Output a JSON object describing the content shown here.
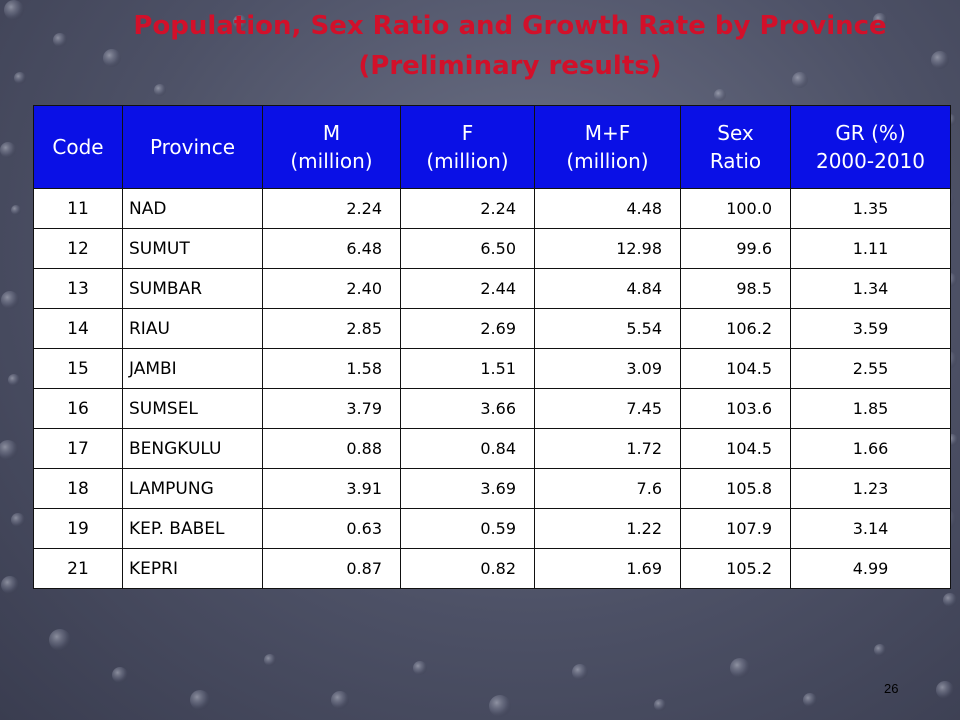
{
  "title": {
    "line1": "Population, Sex Ratio and Growth Rate by Province",
    "line2": "(Preliminary results)"
  },
  "table": {
    "headers": [
      [
        "Code"
      ],
      [
        "Province"
      ],
      [
        "M",
        "(million)"
      ],
      [
        "F",
        "(million)"
      ],
      [
        "M+F",
        "(million)"
      ],
      [
        "Sex",
        "Ratio"
      ],
      [
        "GR (%)",
        "2000-2010"
      ]
    ],
    "rows": [
      [
        "11",
        "NAD",
        "2.24",
        "2.24",
        "4.48",
        "100.0",
        "1.35"
      ],
      [
        "12",
        "SUMUT",
        "6.48",
        "6.50",
        "12.98",
        "99.6",
        "1.11"
      ],
      [
        "13",
        "SUMBAR",
        "2.40",
        "2.44",
        "4.84",
        "98.5",
        "1.34"
      ],
      [
        "14",
        "RIAU",
        "2.85",
        "2.69",
        "5.54",
        "106.2",
        "3.59"
      ],
      [
        "15",
        "JAMBI",
        "1.58",
        "1.51",
        "3.09",
        "104.5",
        "2.55"
      ],
      [
        "16",
        "SUMSEL",
        "3.79",
        "3.66",
        "7.45",
        "103.6",
        "1.85"
      ],
      [
        "17",
        "BENGKULU",
        "0.88",
        "0.84",
        "1.72",
        "104.5",
        "1.66"
      ],
      [
        "18",
        "LAMPUNG",
        "3.91",
        "3.69",
        "7.6",
        "105.8",
        "1.23"
      ],
      [
        "19",
        "KEP. BABEL",
        "0.63",
        "0.59",
        "1.22",
        "107.9",
        "3.14"
      ],
      [
        "21",
        "KEPRI",
        "0.87",
        "0.82",
        "1.69",
        "105.2",
        "4.99"
      ]
    ]
  },
  "page_number": "26",
  "colors": {
    "title": "#d2102a",
    "header_bg": "#0a10e6",
    "header_text": "#ffffff",
    "background": "#4d5166"
  }
}
